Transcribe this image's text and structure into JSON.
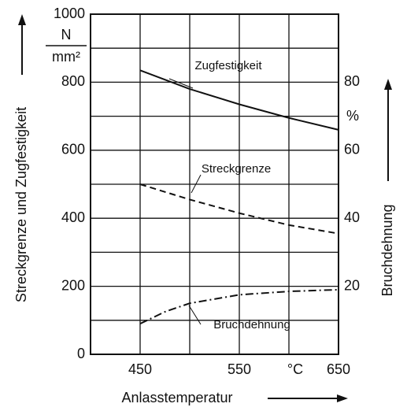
{
  "chart_data": {
    "type": "line",
    "xlabel": "Anlasstemperatur",
    "ylabel": "Streckgrenze und Zugfestigkeit",
    "y2label": "Bruchdehnung",
    "y_unit": {
      "numerator": "N",
      "denominator": "mm²"
    },
    "y2_unit": "%",
    "x_unit": "°C",
    "xlim": [
      400,
      650
    ],
    "xticks": [
      450,
      550,
      650
    ],
    "ylim": [
      0,
      1000
    ],
    "yticks": [
      0,
      200,
      400,
      600,
      800,
      1000
    ],
    "y2lim": [
      0,
      100
    ],
    "y2ticks": [
      20,
      40,
      60,
      80
    ],
    "xgrid": [
      400,
      450,
      500,
      550,
      600,
      650
    ],
    "ygrid": [
      0,
      100,
      200,
      300,
      400,
      500,
      600,
      700,
      800,
      900,
      1000
    ],
    "color": "#111111",
    "series": [
      {
        "name": "Zugfestigkeit",
        "style": "solid",
        "x": [
          450,
          500,
          550,
          600,
          650
        ],
        "values": [
          835,
          780,
          735,
          695,
          660
        ]
      },
      {
        "name": "Streckgrenze",
        "style": "dashed",
        "x": [
          450,
          500,
          550,
          600,
          650
        ],
        "values": [
          500,
          455,
          415,
          380,
          355
        ]
      },
      {
        "name": "Bruchdehnung",
        "style": "dashdot",
        "axis": "y2",
        "x": [
          450,
          475,
          500,
          550,
          600,
          650
        ],
        "values": [
          9,
          12.5,
          15,
          17.5,
          18.5,
          19
        ]
      }
    ]
  }
}
